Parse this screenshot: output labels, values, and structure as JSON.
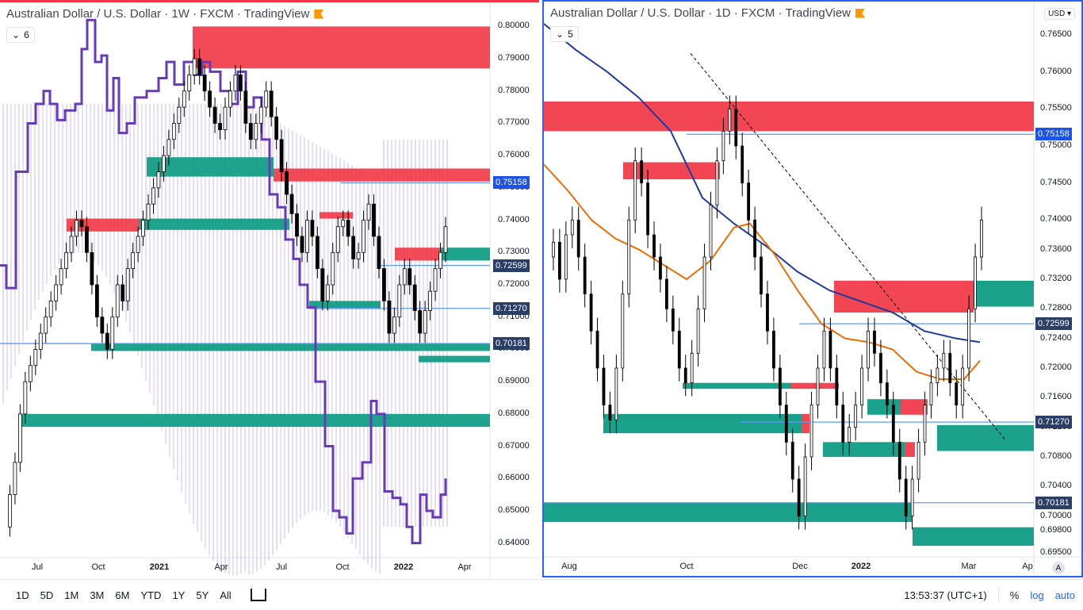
{
  "left": {
    "title": "Australian Dollar / U.S. Dollar · 1W · FXCM · TradingView",
    "interval_badge": "6",
    "price_ticks": [
      "0.80000",
      "0.79000",
      "0.78000",
      "0.77000",
      "0.76000",
      "0.75000",
      "0.74000",
      "0.73000",
      "0.72000",
      "0.71000",
      "0.70000",
      "0.69000",
      "0.68000",
      "0.67000",
      "0.66000",
      "0.65000",
      "0.64000"
    ],
    "price_tags": [
      "0.75158",
      "0.72599",
      "0.71270",
      "0.70181"
    ],
    "x_labels": [
      "Jul",
      "Oct",
      "2021",
      "Apr",
      "Jul",
      "Oct",
      "2022",
      "Apr"
    ]
  },
  "right": {
    "title": "Australian Dollar / U.S. Dollar · 1D · FXCM · TradingView",
    "interval_badge": "5",
    "currency": "USD",
    "price_ticks": [
      "0.76500",
      "0.76000",
      "0.75500",
      "0.75000",
      "0.74500",
      "0.74000",
      "0.73600",
      "0.73200",
      "0.72800",
      "0.72400",
      "0.72000",
      "0.71600",
      "0.71200",
      "0.70800",
      "0.70400",
      "0.70000",
      "0.69800",
      "0.69500"
    ],
    "price_tags": [
      "0.75158",
      "0.72599",
      "0.71270",
      "0.70181"
    ],
    "x_labels": [
      "Aug",
      "Oct",
      "Dec",
      "2022",
      "Mar",
      "Ap"
    ],
    "auto_label": "A"
  },
  "bottom": {
    "ranges": [
      "1D",
      "5D",
      "1M",
      "3M",
      "6M",
      "YTD",
      "1Y",
      "5Y",
      "All"
    ],
    "time": "13:53:37 (UTC+1)",
    "percent": "%",
    "log": "log",
    "auto": "auto"
  },
  "colors": {
    "bull": "#1e8a3e",
    "bear": "#f23645",
    "zone_green": "#089981",
    "zone_red": "#f23645",
    "line_blue": "#5b9cf6",
    "ma_blue": "#1e3a9e",
    "ma_orange": "#ef6c00",
    "cloud": "#b39ddb",
    "purple": "#673ab7"
  },
  "chart_data": [
    {
      "type": "candlestick",
      "title": "Australian Dollar / U.S. Dollar · 1W · FXCM · TradingView",
      "x_ticks": [
        "Jul",
        "Oct",
        "2021",
        "Apr",
        "Jul",
        "Oct",
        "2022",
        "Apr"
      ],
      "y_range": [
        0.635,
        0.805
      ],
      "horizontal_levels": [
        0.75158,
        0.72599,
        0.7127,
        0.70181
      ],
      "close_approx": [
        0.645,
        0.66,
        0.69,
        0.7,
        0.71,
        0.72,
        0.735,
        0.73,
        0.71,
        0.725,
        0.74,
        0.765,
        0.775,
        0.79,
        0.775,
        0.77,
        0.77,
        0.78,
        0.77,
        0.75,
        0.735,
        0.73,
        0.725,
        0.735,
        0.745,
        0.73,
        0.72,
        0.715,
        0.725,
        0.74
      ]
    },
    {
      "type": "candlestick",
      "title": "Australian Dollar / U.S. Dollar · 1D · FXCM · TradingView",
      "x_ticks": [
        "Aug",
        "Oct",
        "Dec",
        "2022",
        "Mar",
        "Ap"
      ],
      "y_range": [
        0.693,
        0.768
      ],
      "horizontal_levels": [
        0.75158,
        0.72599,
        0.7127,
        0.70181
      ],
      "close_approx": [
        0.735,
        0.737,
        0.732,
        0.74,
        0.72,
        0.713,
        0.728,
        0.745,
        0.735,
        0.73,
        0.722,
        0.728,
        0.735,
        0.75,
        0.755,
        0.745,
        0.738,
        0.73,
        0.725,
        0.72,
        0.71,
        0.705,
        0.712,
        0.718,
        0.722,
        0.72,
        0.715,
        0.705,
        0.71,
        0.718,
        0.722,
        0.728,
        0.735,
        0.742
      ]
    }
  ]
}
